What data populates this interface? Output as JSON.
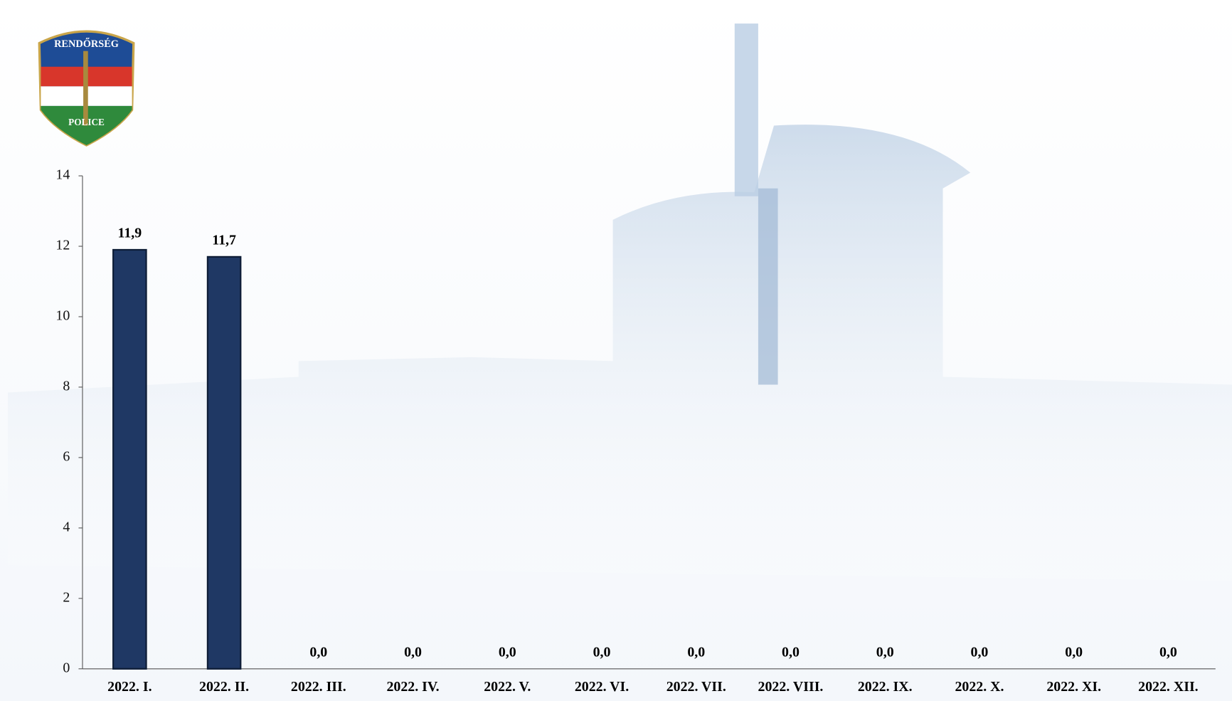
{
  "logo_text": [
    "RENDŐRSÉG",
    "POLICE"
  ],
  "chart_data": {
    "type": "bar",
    "categories": [
      "2022. I.",
      "2022. II.",
      "2022. III.",
      "2022. IV.",
      "2022. V.",
      "2022. VI.",
      "2022. VII.",
      "2022. VIII.",
      "2022. IX.",
      "2022. X.",
      "2022. XI.",
      "2022. XII."
    ],
    "values": [
      11.9,
      11.7,
      0,
      0,
      0,
      0,
      0,
      0,
      0,
      0,
      0,
      0
    ],
    "value_labels": [
      "11,9",
      "11,7",
      "0,0",
      "0,0",
      "0,0",
      "0,0",
      "0,0",
      "0,0",
      "0,0",
      "0,0",
      "0,0",
      "0,0"
    ],
    "color": "#1f3864",
    "ylim": [
      0,
      14
    ],
    "yticks": [
      0,
      2,
      4,
      6,
      8,
      10,
      12,
      14
    ],
    "grid": false
  }
}
